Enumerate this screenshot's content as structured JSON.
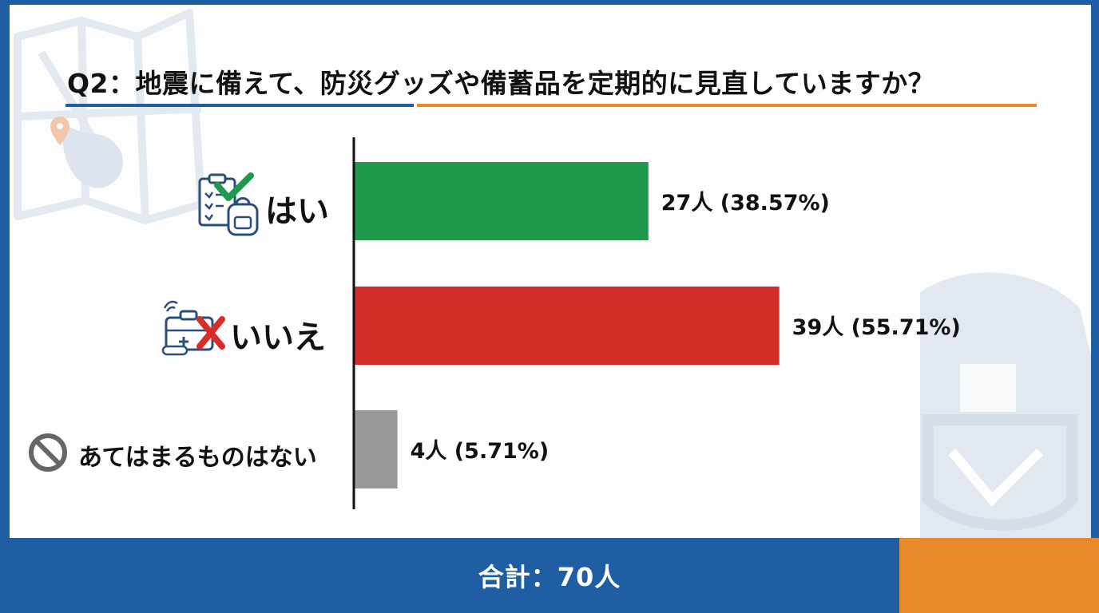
{
  "title": "Q2：地震に備えて、防災グッズや備蓄品を定期的に見直していますか？",
  "footer": {
    "total": "合計：70人"
  },
  "colors": {
    "yes": "#1f9a4c",
    "no": "#d42d2a",
    "none": "#999999",
    "accent_blue": "#1f5ea3",
    "accent_orange": "#e8892a"
  },
  "icons": [
    "clipboard-backpack-check-icon",
    "first-aid-kit-cross-icon",
    "prohibited-icon"
  ],
  "chart_data": {
    "type": "bar",
    "orientation": "horizontal",
    "title": "Q2：地震に備えて、防災グッズや備蓄品を定期的に見直していますか？",
    "categories": [
      "はい",
      "いいえ",
      "あてはまるものはない"
    ],
    "values": [
      27,
      39,
      4
    ],
    "percent": [
      38.57,
      55.71,
      5.71
    ],
    "value_labels": [
      "27人 (38.57%)",
      "39人 (55.71%)",
      "4人 (5.71%)"
    ],
    "bar_colors": [
      "#1f9a4c",
      "#d42d2a",
      "#999999"
    ],
    "xlim": [
      0,
      41
    ],
    "grid": false,
    "total": 70
  }
}
